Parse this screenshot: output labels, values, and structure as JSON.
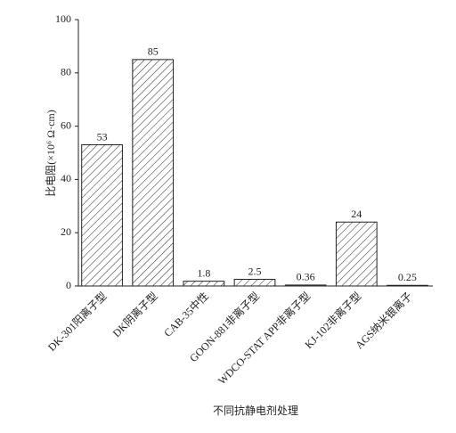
{
  "chart_data": {
    "type": "bar",
    "x_label": "不同抗静电剂处理",
    "y_label": "比电阻(×10⁶ Ω·cm)",
    "categories": [
      "DK-301阳离子型",
      "DK阴离子型",
      "CAB-35中性",
      "GOON-881非离子型",
      "WDCO-STAT APP非离子型",
      "KJ-102非离子型",
      "AGS纳米银离子"
    ],
    "values": [
      53,
      85,
      1.8,
      2.5,
      0.36,
      24,
      0.25
    ],
    "color": "#222222",
    "hatch": true,
    "ylim": [
      0,
      100
    ],
    "yticks": [
      0,
      20,
      40,
      60,
      80,
      100
    ],
    "grid": false
  }
}
